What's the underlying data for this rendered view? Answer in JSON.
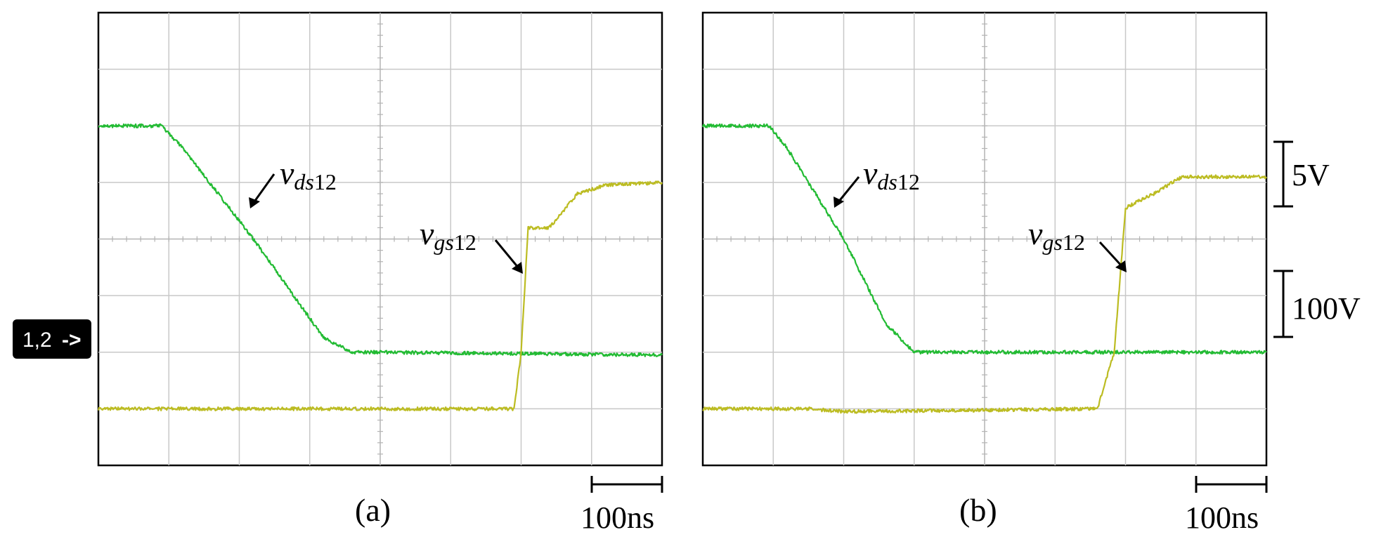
{
  "channel_marker": "1,2",
  "colors": {
    "vds": "#22bb33",
    "vgs": "#bcbc22",
    "marker_bg": "#000000"
  },
  "time_scale_label": "100ns",
  "scale_labels": {
    "vgs_per_div": "5V",
    "vds_per_div": "100V"
  },
  "panels": [
    {
      "id": "a",
      "caption": "(a)",
      "labels": {
        "vds_main": "v",
        "vds_sub": "ds",
        "vds_num": "12",
        "vgs_main": "v",
        "vgs_sub": "gs",
        "vgs_num": "12"
      }
    },
    {
      "id": "b",
      "caption": "(b)",
      "labels": {
        "vds_main": "v",
        "vds_sub": "ds",
        "vds_num": "12",
        "vgs_main": "v",
        "vgs_sub": "gs",
        "vgs_num": "12"
      }
    }
  ],
  "chart_data": [
    {
      "type": "line",
      "title": "(a)",
      "xlabel": "",
      "ylabel": "",
      "x_unit": "ns",
      "xlim": [
        0,
        400
      ],
      "ylim": [
        -4,
        4
      ],
      "grid": true,
      "series": [
        {
          "name": "vds12",
          "color": "#22bb33",
          "x": [
            0,
            45,
            60,
            110,
            160,
            180,
            200,
            400
          ],
          "y": [
            2.0,
            2.0,
            1.6,
            0.0,
            -1.75,
            -2.0,
            -2.0,
            -2.05
          ]
        },
        {
          "name": "vgs12",
          "color": "#bcbc22",
          "x": [
            0,
            295,
            300,
            305,
            305,
            320,
            340,
            360,
            400
          ],
          "y": [
            -3.0,
            -3.0,
            -2.0,
            0.2,
            0.2,
            0.2,
            0.8,
            0.95,
            1.0
          ]
        }
      ]
    },
    {
      "type": "line",
      "title": "(b)",
      "xlabel": "",
      "ylabel": "",
      "x_unit": "ns",
      "xlim": [
        0,
        400
      ],
      "ylim": [
        -4,
        4
      ],
      "grid": true,
      "series": [
        {
          "name": "vds12",
          "color": "#22bb33",
          "x": [
            0,
            47,
            60,
            100,
            130,
            150,
            400
          ],
          "y": [
            2.0,
            2.0,
            1.6,
            0.0,
            -1.5,
            -2.0,
            -2.0
          ]
        },
        {
          "name": "vgs12",
          "color": "#bcbc22",
          "x": [
            0,
            75,
            100,
            280,
            292,
            300,
            320,
            340,
            400
          ],
          "y": [
            -3.0,
            -3.0,
            -3.05,
            -3.0,
            -2.0,
            0.55,
            0.8,
            1.1,
            1.1
          ]
        }
      ]
    }
  ]
}
